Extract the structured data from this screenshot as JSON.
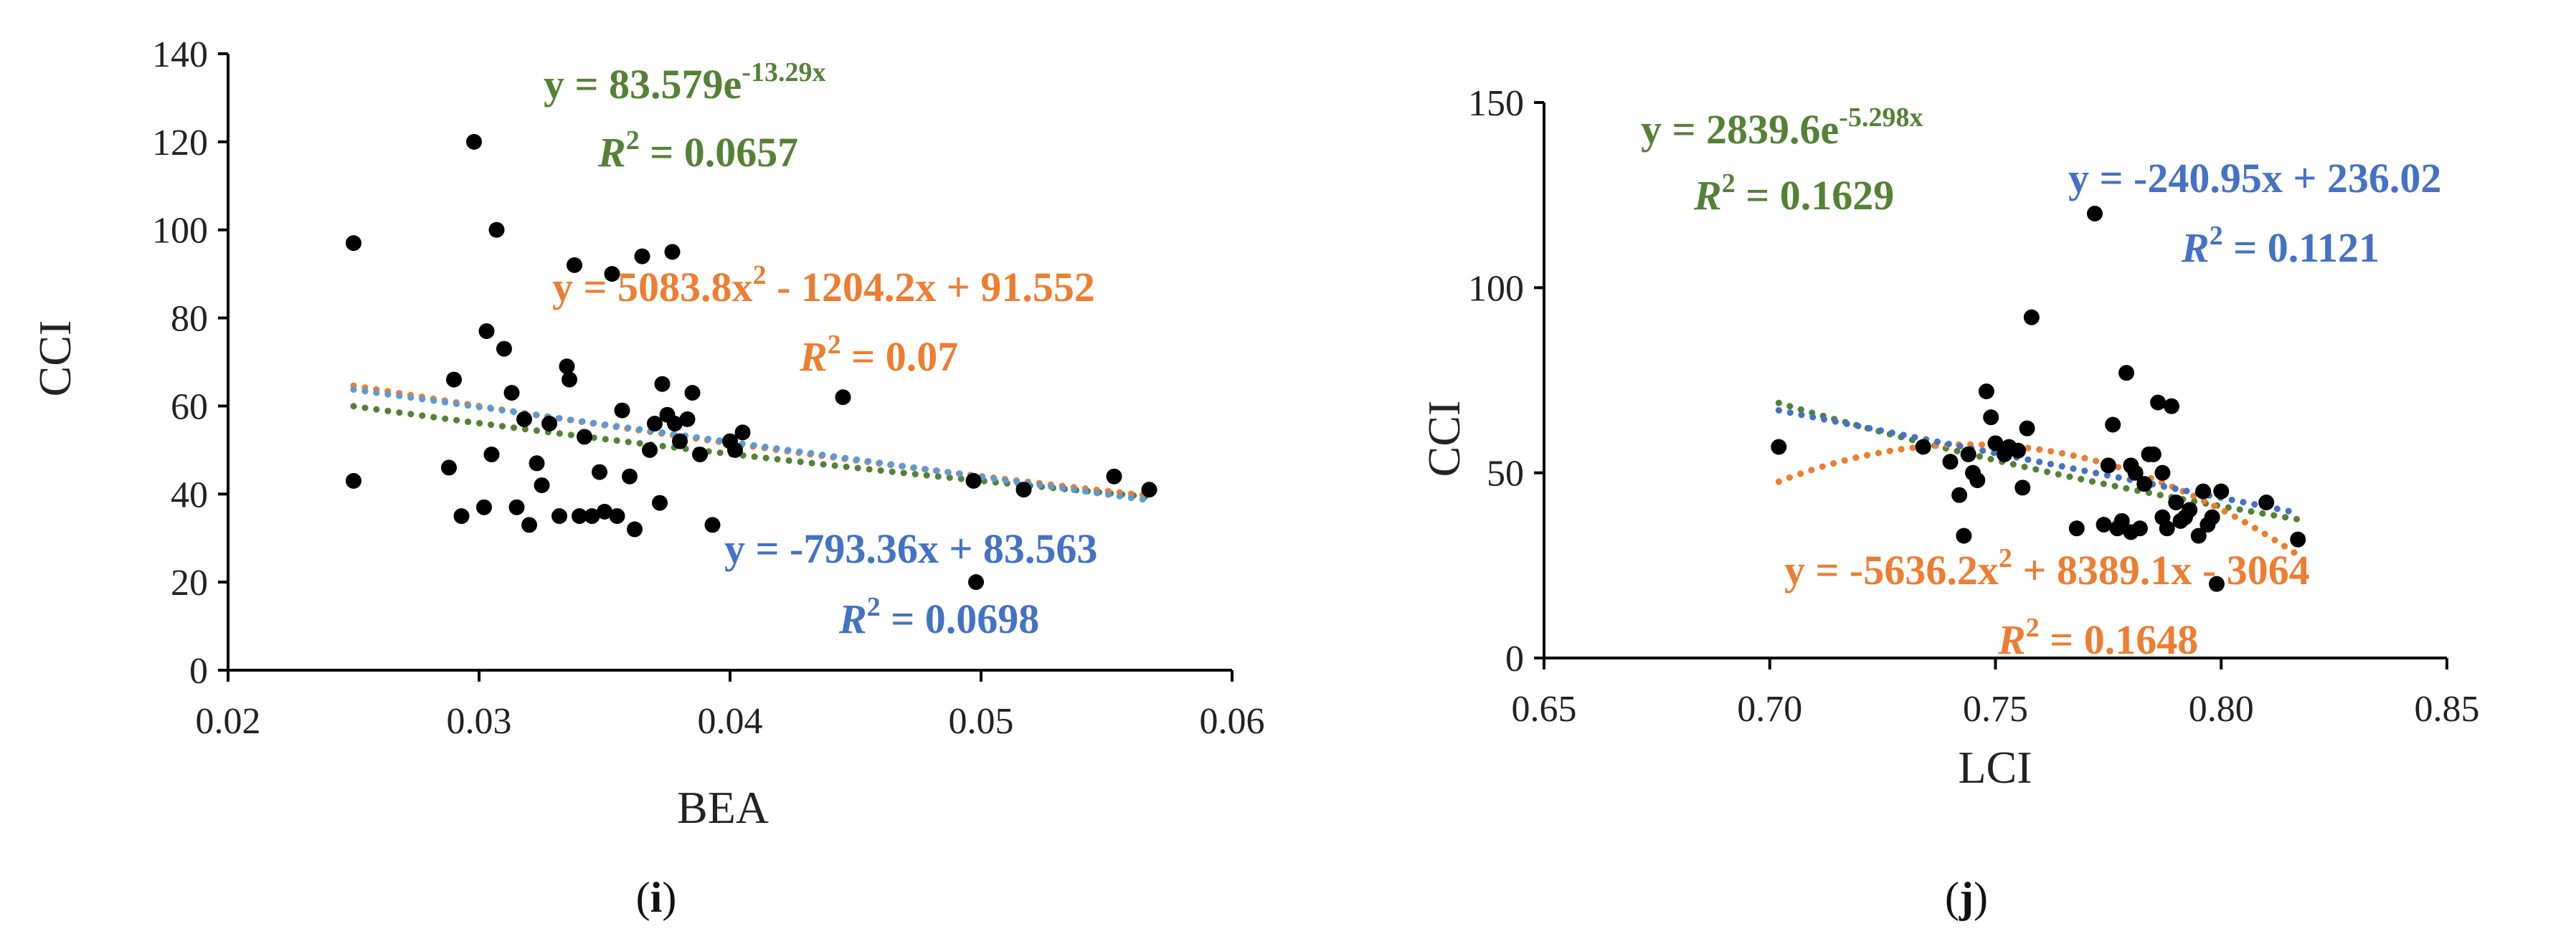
{
  "colors": {
    "points": "#000000",
    "axis": "#000000",
    "green": "#548235",
    "orange": "#ED7D31",
    "blue": "#4472C4",
    "lightblue": "#5B9BD5"
  },
  "chart_data": [
    {
      "type": "scatter",
      "panel_label": "(i)",
      "panel_letter": "i",
      "xlabel": "BEA",
      "ylabel": "CCI",
      "xlim": [
        0.02,
        0.06
      ],
      "ylim": [
        0,
        140
      ],
      "xticks": [
        0.02,
        0.03,
        0.04,
        0.05,
        0.06
      ],
      "yticks": [
        0,
        20,
        40,
        60,
        80,
        100,
        120,
        140
      ],
      "xtick_labels": [
        "0.02",
        "0.03",
        "0.04",
        "0.05",
        "0.06"
      ],
      "ytick_labels": [
        "0",
        "20",
        "40",
        "60",
        "80",
        "100",
        "120",
        "140"
      ],
      "x": [
        0.025,
        0.025,
        0.0288,
        0.029,
        0.0293,
        0.0298,
        0.0302,
        0.0303,
        0.0305,
        0.0307,
        0.031,
        0.0313,
        0.0315,
        0.0318,
        0.032,
        0.0323,
        0.0325,
        0.0328,
        0.0332,
        0.0335,
        0.0336,
        0.0338,
        0.034,
        0.0342,
        0.0345,
        0.0348,
        0.035,
        0.0353,
        0.0355,
        0.0357,
        0.036,
        0.0362,
        0.0365,
        0.0368,
        0.037,
        0.0372,
        0.0373,
        0.0375,
        0.0377,
        0.0378,
        0.038,
        0.0383,
        0.0385,
        0.0388,
        0.0393,
        0.04,
        0.0402,
        0.0405,
        0.0445,
        0.0497,
        0.0498,
        0.0517,
        0.0553,
        0.0567
      ],
      "y": [
        97,
        43,
        46,
        66,
        35,
        120,
        37,
        77,
        49,
        100,
        73,
        63,
        37,
        57,
        33,
        47,
        42,
        56,
        35,
        69,
        66,
        92,
        35,
        53,
        35,
        45,
        36,
        90,
        35,
        59,
        44,
        32,
        94,
        50,
        56,
        38,
        65,
        58,
        95,
        56,
        52,
        57,
        63,
        49,
        33,
        52,
        50,
        54,
        62,
        43,
        20,
        41,
        44,
        41
      ],
      "series": [
        {
          "name": "Exponential",
          "color_key": "green",
          "model": "exp",
          "a": 83.579,
          "b": -13.29,
          "x_range": [
            0.025,
            0.0567
          ],
          "equation_main": "y = 83.579e",
          "equation_sup": "-13.29x",
          "r2_label": "R",
          "r2_sup": "2",
          "r2_value": " = 0.0657"
        },
        {
          "name": "Polynomial",
          "color_key": "orange",
          "model": "poly",
          "c2": 5083.8,
          "c1": -1204.2,
          "c0": 91.552,
          "x_range": [
            0.025,
            0.0567
          ],
          "equation_main": "y = 5083.8x",
          "equation_sup": "2",
          "equation_rest": " - 1204.2x + 91.552",
          "r2_label": "R",
          "r2_sup": "2",
          "r2_value": " = 0.07"
        },
        {
          "name": "Linear",
          "color_key": "lightblue",
          "model": "linear",
          "slope": -793.36,
          "intercept": 83.563,
          "x_range": [
            0.025,
            0.0567
          ],
          "equation_main": "y = -793.36x + 83.563",
          "r2_label": "R",
          "r2_sup": "2",
          "r2_value": " = 0.0698"
        }
      ]
    },
    {
      "type": "scatter",
      "panel_label": "(j)",
      "panel_letter": "j",
      "xlabel": "LCI",
      "ylabel": "CCI",
      "xlim": [
        0.65,
        0.85
      ],
      "ylim": [
        0,
        150
      ],
      "xticks": [
        0.65,
        0.7,
        0.75,
        0.8,
        0.85
      ],
      "yticks": [
        0,
        50,
        100,
        150
      ],
      "xtick_labels": [
        "0.65",
        "0.70",
        "0.75",
        "0.80",
        "0.85"
      ],
      "ytick_labels": [
        "0",
        "50",
        "100",
        "150"
      ],
      "x": [
        0.702,
        0.734,
        0.74,
        0.742,
        0.743,
        0.744,
        0.745,
        0.746,
        0.748,
        0.749,
        0.75,
        0.752,
        0.753,
        0.755,
        0.756,
        0.757,
        0.758,
        0.768,
        0.772,
        0.774,
        0.775,
        0.776,
        0.777,
        0.778,
        0.779,
        0.78,
        0.78,
        0.781,
        0.782,
        0.783,
        0.784,
        0.785,
        0.786,
        0.787,
        0.787,
        0.788,
        0.789,
        0.79,
        0.791,
        0.792,
        0.793,
        0.795,
        0.796,
        0.797,
        0.798,
        0.799,
        0.8,
        0.81,
        0.817
      ],
      "y": [
        57,
        57,
        53,
        44,
        33,
        55,
        50,
        48,
        72,
        65,
        58,
        55,
        57,
        56,
        46,
        62,
        92,
        35,
        120,
        36,
        52,
        63,
        35,
        37,
        77,
        34,
        52,
        50,
        35,
        47,
        55,
        55,
        69,
        50,
        38,
        35,
        68,
        42,
        37,
        38,
        40,
        33,
        45,
        36,
        38,
        20,
        45,
        42,
        32
      ],
      "series": [
        {
          "name": "Exponential",
          "color_key": "green",
          "model": "exp",
          "a": 2839.6,
          "b": -5.298,
          "x_range": [
            0.702,
            0.817
          ],
          "equation_main": "y = 2839.6e",
          "equation_sup": "-5.298x",
          "r2_label": "R",
          "r2_sup": "2",
          "r2_value": " = 0.1629"
        },
        {
          "name": "Polynomial",
          "color_key": "orange",
          "model": "poly",
          "c2": -5636.2,
          "c1": 8389.1,
          "c0": -3064,
          "x_range": [
            0.702,
            0.817
          ],
          "equation_main": "y = -5636.2x",
          "equation_sup": "2",
          "equation_rest": " + 8389.1x - 3064",
          "r2_label": "R",
          "r2_sup": "2",
          "r2_value": " = 0.1648"
        },
        {
          "name": "Linear",
          "color_key": "blue",
          "model": "linear",
          "slope": -240.95,
          "intercept": 236.02,
          "x_range": [
            0.702,
            0.817
          ],
          "equation_main": "y = -240.95x + 236.02",
          "r2_label": "R",
          "r2_sup": "2",
          "r2_value": " = 0.1121"
        }
      ]
    }
  ]
}
